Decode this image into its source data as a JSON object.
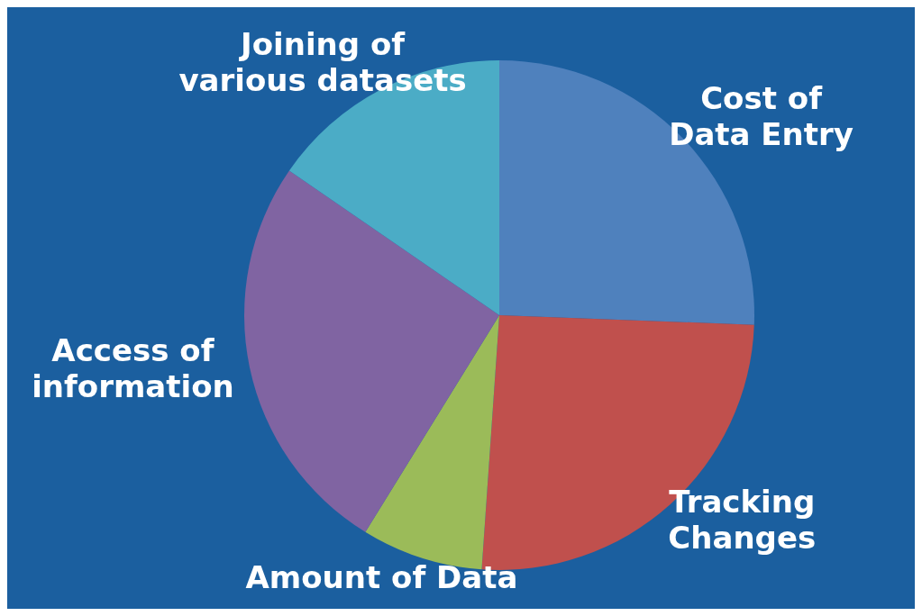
{
  "chart_data": {
    "type": "pie",
    "categories": [
      "Cost of Data Entry",
      "Tracking Changes",
      "Amount of Data",
      "Access of information",
      "Joining of various datasets"
    ],
    "values": [
      25.6,
      25.5,
      7.7,
      25.8,
      15.4
    ],
    "colors": [
      "#4f81bd",
      "#c0504d",
      "#9bbb59",
      "#8064a2",
      "#4bacc6"
    ]
  }
}
